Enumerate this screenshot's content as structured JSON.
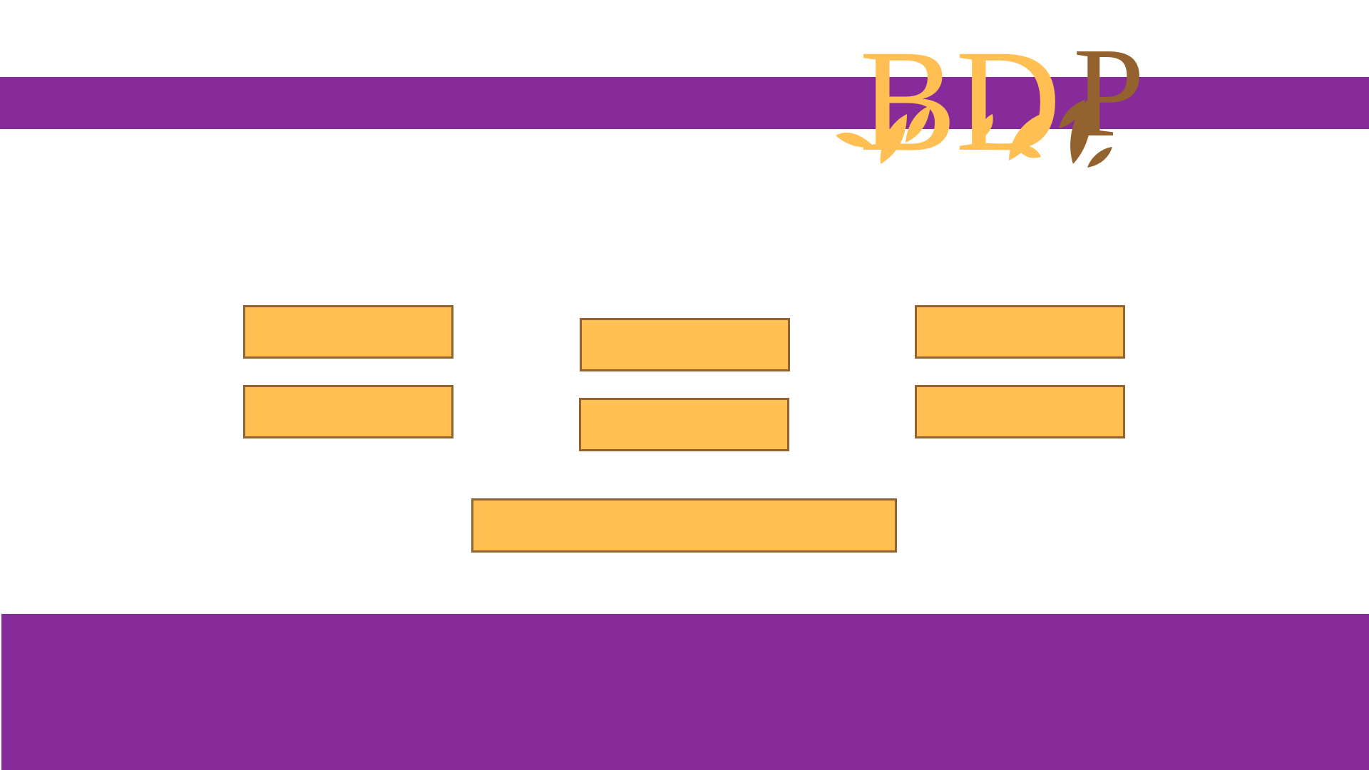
{
  "logo": {
    "text": "BDP",
    "letters": [
      "B",
      "D",
      "P"
    ],
    "icon": "leaf-sprig-icon"
  },
  "bars": [
    {
      "label": ""
    },
    {
      "label": ""
    },
    {
      "label": ""
    },
    {
      "label": ""
    },
    {
      "label": ""
    },
    {
      "label": ""
    },
    {
      "label": ""
    }
  ],
  "colors": {
    "purple": "#872b9b",
    "gold": "#ffbf52",
    "brown": "#94622f",
    "background": "#ffffff"
  }
}
